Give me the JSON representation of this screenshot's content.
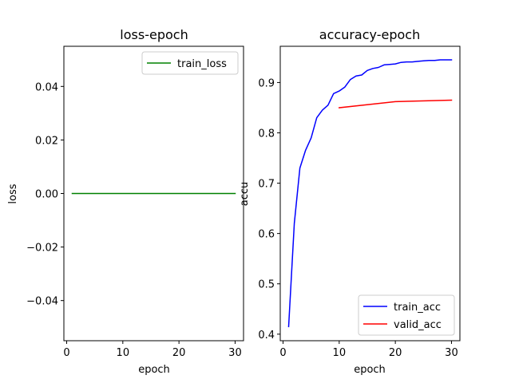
{
  "chart_data": [
    {
      "type": "line",
      "title": "loss-epoch",
      "xlabel": "epoch",
      "ylabel": "loss",
      "xlim": [
        -0.5,
        31.5
      ],
      "ylim": [
        -0.055,
        0.055
      ],
      "xticks": [
        0,
        10,
        20,
        30
      ],
      "xtick_labels": [
        "0",
        "10",
        "20",
        "30"
      ],
      "yticks": [
        -0.04,
        -0.02,
        0.0,
        0.02,
        0.04
      ],
      "ytick_labels": [
        "−0.04",
        "−0.02",
        "0.00",
        "0.02",
        "0.04"
      ],
      "grid": false,
      "legend_position": "upper right",
      "series": [
        {
          "name": "train_loss",
          "color": "#008000",
          "x": [
            1,
            2,
            3,
            4,
            5,
            6,
            7,
            8,
            9,
            10,
            11,
            12,
            13,
            14,
            15,
            16,
            17,
            18,
            19,
            20,
            21,
            22,
            23,
            24,
            25,
            26,
            27,
            28,
            29,
            30
          ],
          "y": [
            0,
            0,
            0,
            0,
            0,
            0,
            0,
            0,
            0,
            0,
            0,
            0,
            0,
            0,
            0,
            0,
            0,
            0,
            0,
            0,
            0,
            0,
            0,
            0,
            0,
            0,
            0,
            0,
            0,
            0
          ]
        }
      ]
    },
    {
      "type": "line",
      "title": "accuracy-epoch",
      "xlabel": "epoch",
      "ylabel": "accu",
      "xlim": [
        -0.5,
        31.5
      ],
      "ylim": [
        0.387,
        0.972
      ],
      "xticks": [
        0,
        10,
        20,
        30
      ],
      "xtick_labels": [
        "0",
        "10",
        "20",
        "30"
      ],
      "yticks": [
        0.4,
        0.5,
        0.6,
        0.7,
        0.8,
        0.9
      ],
      "ytick_labels": [
        "0.4",
        "0.5",
        "0.6",
        "0.7",
        "0.8",
        "0.9"
      ],
      "grid": false,
      "legend_position": "lower right",
      "series": [
        {
          "name": "train_acc",
          "color": "#0000ff",
          "x": [
            1,
            2,
            3,
            4,
            5,
            6,
            7,
            8,
            9,
            10,
            11,
            12,
            13,
            14,
            15,
            16,
            17,
            18,
            19,
            20,
            21,
            22,
            23,
            24,
            25,
            26,
            27,
            28,
            29,
            30
          ],
          "y": [
            0.415,
            0.62,
            0.73,
            0.765,
            0.79,
            0.83,
            0.845,
            0.855,
            0.878,
            0.883,
            0.891,
            0.906,
            0.913,
            0.915,
            0.924,
            0.928,
            0.93,
            0.935,
            0.936,
            0.937,
            0.94,
            0.941,
            0.941,
            0.942,
            0.943,
            0.944,
            0.944,
            0.945,
            0.945,
            0.945
          ]
        },
        {
          "name": "valid_acc",
          "color": "#ff0000",
          "x": [
            10,
            20,
            30
          ],
          "y": [
            0.85,
            0.862,
            0.865
          ]
        }
      ]
    }
  ]
}
